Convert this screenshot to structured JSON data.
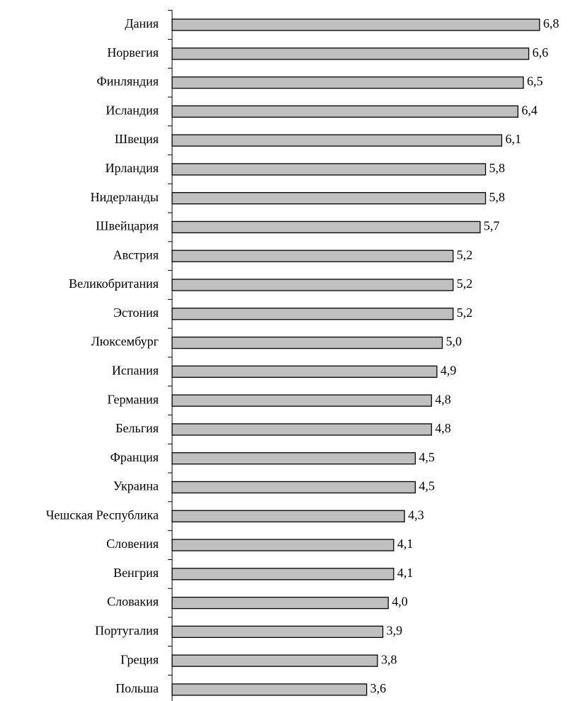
{
  "chart_data": {
    "type": "bar",
    "orientation": "horizontal",
    "categories": [
      "Дания",
      "Норвегия",
      "Финляндия",
      "Исландия",
      "Швеция",
      "Ирландия",
      "Нидерланды",
      "Швейцария",
      "Австрия",
      "Великобритания",
      "Эстония",
      "Люксембург",
      "Испания",
      "Германия",
      "Бельгия",
      "Франция",
      "Украина",
      "Чешская Республика",
      "Словения",
      "Венгрия",
      "Словакия",
      "Португалия",
      "Греция",
      "Польша"
    ],
    "values": [
      6.8,
      6.6,
      6.5,
      6.4,
      6.1,
      5.8,
      5.8,
      5.7,
      5.2,
      5.2,
      5.2,
      5.0,
      4.9,
      4.8,
      4.8,
      4.5,
      4.5,
      4.3,
      4.1,
      4.1,
      4.0,
      3.9,
      3.8,
      3.6
    ],
    "value_labels": [
      "6,8",
      "6,6",
      "6,5",
      "6,4",
      "6,1",
      "5,8",
      "5,8",
      "5,7",
      "5,2",
      "5,2",
      "5,2",
      "5,0",
      "4,9",
      "4,8",
      "4,8",
      "4,5",
      "4,5",
      "4,3",
      "4,1",
      "4,1",
      "4,0",
      "3,9",
      "3,8",
      "3,6"
    ],
    "color": "#c0c0c0",
    "xlim": [
      0,
      7.3
    ]
  }
}
